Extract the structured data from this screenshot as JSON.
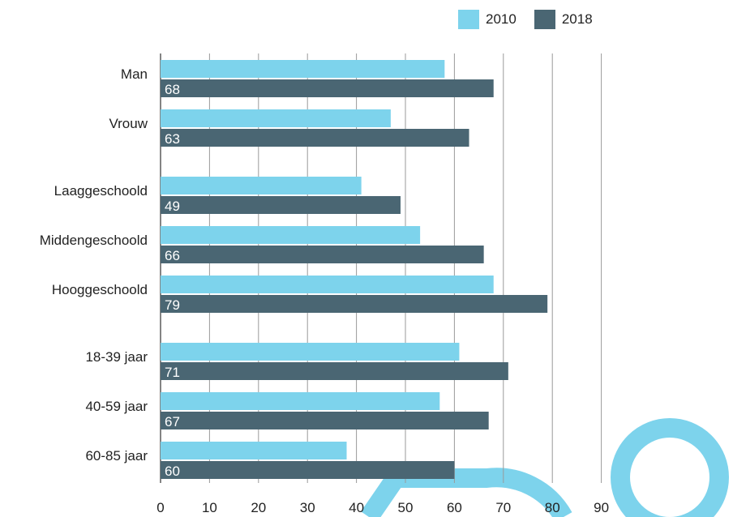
{
  "chart_data": {
    "type": "bar",
    "orientation": "horizontal",
    "title": "",
    "xlabel": "",
    "ylabel": "",
    "xlim": [
      0,
      90
    ],
    "x_ticks": [
      "0",
      "10",
      "20",
      "30",
      "40",
      "50",
      "60",
      "70",
      "80",
      "90"
    ],
    "grid": true,
    "legend_position": "top-right",
    "categories": [
      "Man",
      "Vrouw",
      "Laaggeschoold",
      "Middengeschoold",
      "Hooggeschoold",
      "18-39 jaar",
      "40-59 jaar",
      "60-85 jaar"
    ],
    "groups": [
      [
        0,
        1
      ],
      [
        2,
        3,
        4
      ],
      [
        5,
        6,
        7
      ]
    ],
    "series": [
      {
        "name": "2010",
        "color": "#7dd3ec",
        "values": [
          58,
          47,
          41,
          53,
          68,
          61,
          57,
          38
        ]
      },
      {
        "name": "2018",
        "color": "#4a6673",
        "values": [
          68,
          63,
          49,
          66,
          79,
          71,
          67,
          60
        ]
      }
    ],
    "data_labels": [
      "68",
      "63",
      "49",
      "66",
      "79",
      "71",
      "67",
      "60"
    ],
    "data_label_series": "2018"
  },
  "decoration": {
    "ring_color": "#7dd3ec"
  }
}
